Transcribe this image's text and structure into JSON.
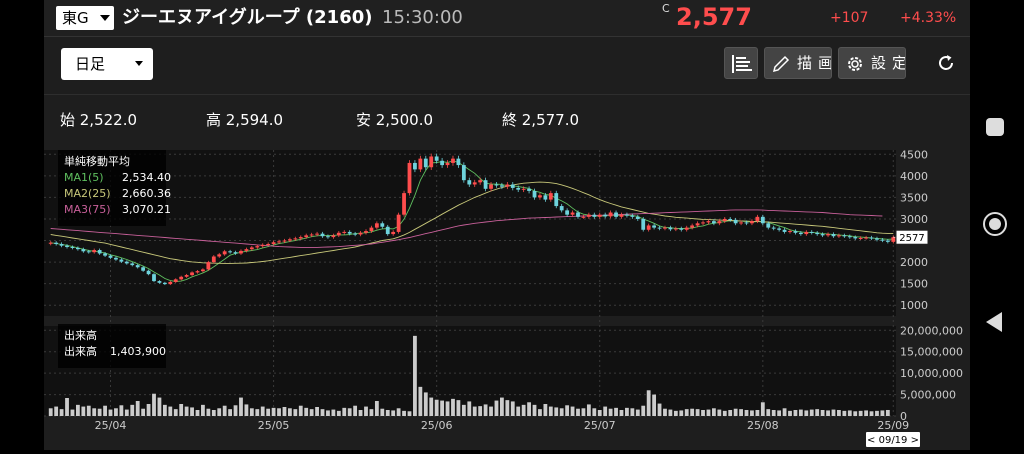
{
  "header": {
    "market": "東G",
    "stock_name": "ジーエヌアイグループ (2160)",
    "time": "15:30:00",
    "c_mark": "C",
    "price": "2,577",
    "change": "+107",
    "change_pct": "+4.33%"
  },
  "toolbar": {
    "period": "日足",
    "draw_label": "描画",
    "settings_label": "設定"
  },
  "ohlc": {
    "open": "始 2,522.0",
    "high": "高 2,594.0",
    "low": "安 2,500.0",
    "close": "終 2,577.0"
  },
  "legend": {
    "title": "単純移動平均",
    "ma1_label": "MA1(5)",
    "ma1_value": "2,534.40",
    "ma2_label": "MA2(25)",
    "ma2_value": "2,660.36",
    "ma3_label": "MA3(75)",
    "ma3_value": "3,070.21",
    "volume_title": "出来高",
    "volume_label": "出来高",
    "volume_value": "1,403,900"
  },
  "colors": {
    "up": "#ff4d4d",
    "down": "#6ed3dc",
    "ma1": "#5fbf5f",
    "ma2": "#c8c87a",
    "ma3": "#c8609a",
    "volume": "#cccccc"
  },
  "chart_data": [
    {
      "type": "candlestick",
      "title": "",
      "x_tick_labels": [
        "25/04",
        "25/05",
        "25/06",
        "25/07",
        "25/08",
        "25/09"
      ],
      "y_ticks": [
        1000,
        1500,
        2000,
        2500,
        3000,
        3500,
        4000,
        4500
      ],
      "ylim": [
        750,
        4600
      ],
      "current_price_label": "2577",
      "cursor_date_label": "< 09/19 >",
      "close": [
        2450,
        2420,
        2380,
        2350,
        2330,
        2300,
        2250,
        2230,
        2280,
        2200,
        2150,
        2100,
        2060,
        2010,
        1970,
        1930,
        1880,
        1800,
        1720,
        1560,
        1520,
        1490,
        1540,
        1600,
        1660,
        1700,
        1760,
        1790,
        1830,
        2000,
        2130,
        2180,
        2250,
        2230,
        2200,
        2260,
        2300,
        2340,
        2370,
        2400,
        2420,
        2460,
        2480,
        2500,
        2530,
        2550,
        2580,
        2620,
        2640,
        2660,
        2600,
        2580,
        2620,
        2680,
        2700,
        2660,
        2640,
        2680,
        2720,
        2800,
        2900,
        2820,
        2650,
        2700,
        3100,
        3600,
        4300,
        4150,
        4400,
        4200,
        4450,
        4350,
        4250,
        4300,
        4400,
        4250,
        3900,
        3800,
        3850,
        3900,
        3700,
        3800,
        3780,
        3750,
        3800,
        3720,
        3680,
        3700,
        3650,
        3500,
        3550,
        3450,
        3600,
        3300,
        3200,
        3100,
        3150,
        3050,
        3050,
        3100,
        3050,
        3100,
        3060,
        3150,
        3050,
        3100,
        3080,
        3050,
        3000,
        2750,
        2850,
        2800,
        2780,
        2800,
        2760,
        2780,
        2750,
        2800,
        2850,
        2900,
        2920,
        2950,
        2900,
        2950,
        3000,
        2980,
        2900,
        2920,
        2900,
        2950,
        3050,
        2900,
        2800,
        2780,
        2750,
        2700,
        2720,
        2680,
        2650,
        2700,
        2680,
        2650,
        2620,
        2650,
        2600,
        2620,
        2600,
        2580,
        2550,
        2560,
        2570,
        2550,
        2520,
        2500,
        2470,
        2577
      ]
    },
    {
      "type": "line",
      "title": "",
      "series": [
        {
          "name": "MA1(5)",
          "values": [
            2450,
            2430,
            2410,
            2390,
            2360,
            2330,
            2300,
            2270,
            2250,
            2240,
            2210,
            2170,
            2140,
            2100,
            2060,
            2010,
            1960,
            1910,
            1850,
            1770,
            1700,
            1620,
            1570,
            1550,
            1560,
            1600,
            1660,
            1700,
            1750,
            1810,
            1890,
            1980,
            2070,
            2160,
            2200,
            2230,
            2250,
            2270,
            2290,
            2330,
            2360,
            2400,
            2430,
            2450,
            2480,
            2500,
            2530,
            2560,
            2590,
            2610,
            2620,
            2620,
            2620,
            2630,
            2630,
            2640,
            2660,
            2670,
            2680,
            2700,
            2740,
            2770,
            2780,
            2770,
            2830,
            3000,
            3250,
            3550,
            3900,
            4130,
            4300,
            4310,
            4330,
            4310,
            4350,
            4310,
            4230,
            4140,
            4060,
            3940,
            3830,
            3810,
            3810,
            3800,
            3770,
            3770,
            3750,
            3730,
            3710,
            3650,
            3620,
            3570,
            3550,
            3480,
            3420,
            3350,
            3250,
            3160,
            3110,
            3090,
            3070,
            3070,
            3070,
            3090,
            3080,
            3090,
            3090,
            3080,
            3060,
            3000,
            2950,
            2900,
            2840,
            2800,
            2800,
            2780,
            2780,
            2780,
            2790,
            2820,
            2840,
            2880,
            2900,
            2920,
            2940,
            2960,
            2950,
            2950,
            2940,
            2930,
            2940,
            2940,
            2920,
            2880,
            2840,
            2800,
            2750,
            2720,
            2700,
            2690,
            2690,
            2680,
            2660,
            2650,
            2640,
            2630,
            2620,
            2610,
            2590,
            2580,
            2570,
            2560,
            2550,
            2540,
            2530,
            2534
          ]
        },
        {
          "name": "MA2(25)",
          "values": [
            2640,
            2620,
            2600,
            2580,
            2560,
            2540,
            2520,
            2500,
            2480,
            2460,
            2440,
            2410,
            2380,
            2350,
            2320,
            2290,
            2260,
            2230,
            2200,
            2170,
            2140,
            2110,
            2080,
            2060,
            2040,
            2020,
            2005,
            1995,
            1985,
            1980,
            1975,
            1972,
            1970,
            1970,
            1972,
            1975,
            1980,
            1990,
            2000,
            2015,
            2030,
            2050,
            2070,
            2090,
            2110,
            2130,
            2150,
            2170,
            2190,
            2210,
            2230,
            2250,
            2270,
            2290,
            2310,
            2330,
            2350,
            2380,
            2410,
            2440,
            2470,
            2500,
            2520,
            2540,
            2580,
            2630,
            2690,
            2760,
            2830,
            2900,
            2970,
            3040,
            3110,
            3180,
            3250,
            3320,
            3380,
            3440,
            3500,
            3550,
            3600,
            3650,
            3690,
            3730,
            3760,
            3790,
            3810,
            3830,
            3840,
            3850,
            3855,
            3850,
            3840,
            3820,
            3790,
            3750,
            3710,
            3660,
            3610,
            3560,
            3500,
            3450,
            3400,
            3360,
            3320,
            3280,
            3250,
            3220,
            3190,
            3160,
            3130,
            3110,
            3090,
            3070,
            3055,
            3040,
            3030,
            3020,
            3010,
            3000,
            2990,
            2985,
            2980,
            2975,
            2970,
            2965,
            2960,
            2955,
            2950,
            2945,
            2940,
            2935,
            2930,
            2920,
            2910,
            2900,
            2890,
            2880,
            2870,
            2860,
            2850,
            2840,
            2830,
            2815,
            2800,
            2785,
            2770,
            2755,
            2740,
            2725,
            2710,
            2695,
            2680,
            2670,
            2665,
            2660
          ]
        },
        {
          "name": "MA3(75)",
          "values": [
            2780,
            2770,
            2760,
            2750,
            2740,
            2730,
            2720,
            2710,
            2700,
            2690,
            2680,
            2670,
            2660,
            2650,
            2640,
            2630,
            2620,
            2610,
            2600,
            2590,
            2580,
            2570,
            2560,
            2550,
            2540,
            2530,
            2520,
            2510,
            2500,
            2490,
            2480,
            2470,
            2460,
            2450,
            2440,
            2430,
            2420,
            2410,
            2400,
            2390,
            2380,
            2370,
            2360,
            2355,
            2350,
            2345,
            2340,
            2340,
            2340,
            2340,
            2345,
            2350,
            2355,
            2360,
            2370,
            2380,
            2390,
            2400,
            2410,
            2420,
            2440,
            2460,
            2480,
            2500,
            2520,
            2545,
            2570,
            2600,
            2630,
            2660,
            2690,
            2720,
            2750,
            2780,
            2810,
            2840,
            2860,
            2880,
            2900,
            2915,
            2930,
            2945,
            2960,
            2970,
            2980,
            2990,
            3000,
            3010,
            3020,
            3025,
            3030,
            3035,
            3040,
            3045,
            3050,
            3055,
            3060,
            3065,
            3070,
            3075,
            3080,
            3085,
            3090,
            3095,
            3100,
            3105,
            3110,
            3115,
            3120,
            3125,
            3130,
            3135,
            3140,
            3145,
            3150,
            3155,
            3160,
            3165,
            3170,
            3175,
            3180,
            3185,
            3190,
            3195,
            3200,
            3205,
            3210,
            3210,
            3210,
            3210,
            3210,
            3205,
            3200,
            3195,
            3190,
            3185,
            3180,
            3175,
            3170,
            3165,
            3160,
            3155,
            3150,
            3140,
            3130,
            3120,
            3110,
            3100,
            3095,
            3090,
            3085,
            3080,
            3075,
            3070
          ]
        }
      ]
    },
    {
      "type": "bar",
      "title": "",
      "y_ticks": [
        0,
        5000000,
        10000000,
        15000000,
        20000000
      ],
      "y_tick_labels": [
        "0",
        "5,000,000",
        "10,000,000",
        "15,000,000",
        "20,000,000"
      ],
      "ylim": [
        0,
        21000000
      ],
      "values": [
        1800000,
        2200000,
        1600000,
        4200000,
        1500000,
        2600000,
        2200000,
        2400000,
        1800000,
        1700000,
        2400000,
        1500000,
        1800000,
        2500000,
        1500000,
        2600000,
        3500000,
        1700000,
        2800000,
        5200000,
        4300000,
        2600000,
        2200000,
        1600000,
        2800000,
        2200000,
        2000000,
        1400000,
        2600000,
        1700000,
        1400000,
        1800000,
        2400000,
        1600000,
        2500000,
        4300000,
        2700000,
        1800000,
        1600000,
        2200000,
        1700000,
        1900000,
        1800000,
        2100000,
        1800000,
        1600000,
        2400000,
        1900000,
        1600000,
        2100000,
        1600000,
        1300000,
        1500000,
        1200000,
        1900000,
        1800000,
        2400000,
        1400000,
        2200000,
        1600000,
        3500000,
        1700000,
        1400000,
        1300000,
        1800000,
        1200000,
        1100000,
        18700000,
        6800000,
        5500000,
        4300000,
        3800000,
        3600000,
        3400000,
        4000000,
        3700000,
        2600000,
        3400000,
        2200000,
        2300000,
        2700000,
        2200000,
        3600000,
        4300000,
        3700000,
        3400000,
        2200000,
        2600000,
        3200000,
        2600000,
        1600000,
        2800000,
        2200000,
        2000000,
        1800000,
        2500000,
        2200000,
        1700000,
        1800000,
        2700000,
        1800000,
        1400000,
        2200000,
        1700000,
        1900000,
        1400000,
        1900000,
        1800000,
        1500000,
        2400000,
        6000000,
        5000000,
        2900000,
        1700000,
        1500000,
        1200000,
        1300000,
        1600000,
        1700000,
        1600000,
        1400000,
        1500000,
        1800000,
        1500000,
        1200000,
        1400000,
        1700000,
        1600000,
        1400000,
        1300000,
        1400000,
        3200000,
        1600000,
        1400000,
        1300000,
        1800000,
        1200000,
        1400000,
        1500000,
        1300000,
        1500000,
        1600000,
        1400000,
        1300000,
        1500000,
        1400000,
        1200000,
        1300000,
        1100000,
        1200000,
        1300000,
        1100000,
        1200000,
        1300000,
        1403900
      ]
    }
  ]
}
